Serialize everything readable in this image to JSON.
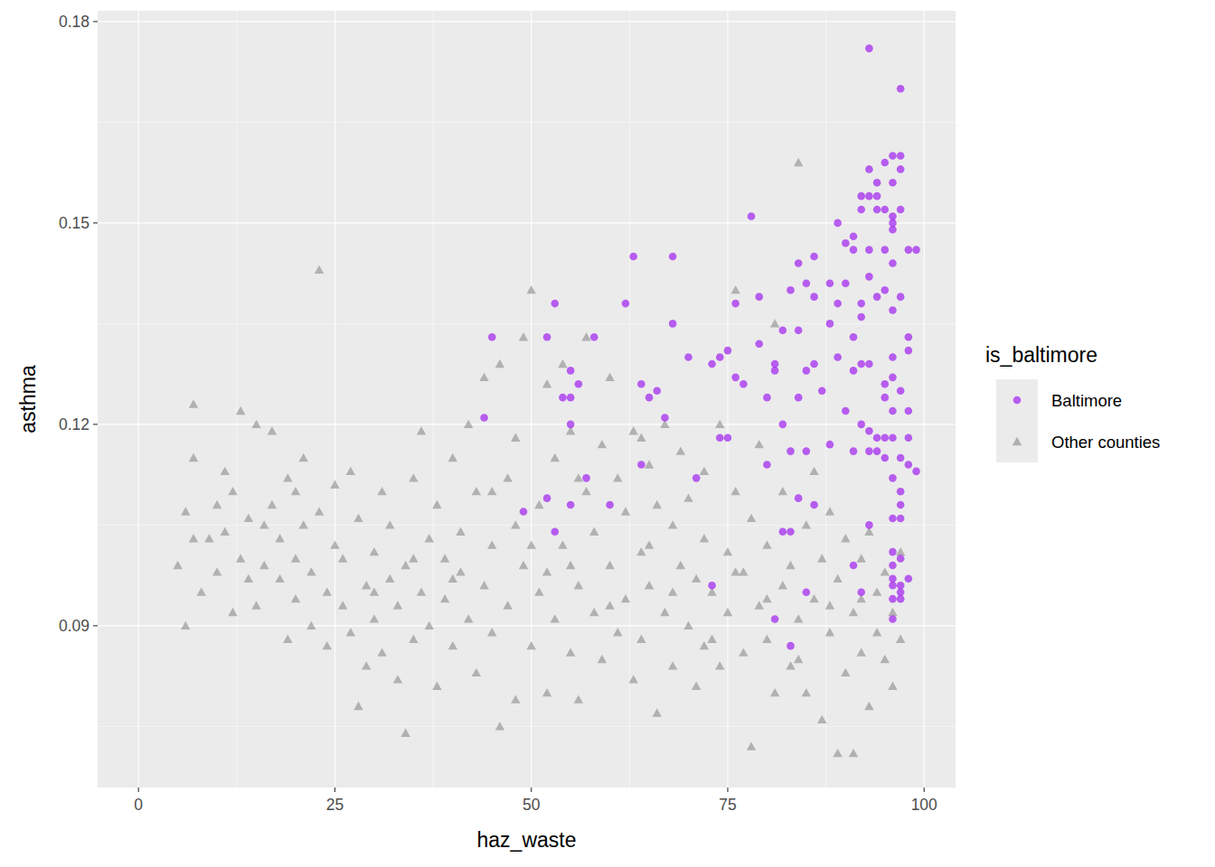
{
  "chart_data": {
    "type": "scatter",
    "x_label": "haz_waste",
    "y_label": "asthma",
    "legend_title": "is_baltimore",
    "xlim": [
      -5.2,
      104.0
    ],
    "ylim": [
      0.0659,
      0.1816
    ],
    "xticks": [
      0,
      25,
      50,
      75,
      100
    ],
    "yticks": [
      0.09,
      0.12,
      0.15,
      0.18
    ],
    "grid": true,
    "legend": "right",
    "series": [
      {
        "name": "Baltimore",
        "color": "#a020f0",
        "marker": "circle",
        "x": [
          93,
          97,
          96,
          97,
          97,
          93,
          95,
          96,
          94,
          92,
          93,
          94,
          92,
          94,
          95,
          96,
          96,
          97,
          96,
          89,
          78,
          90,
          91,
          93,
          91,
          95,
          98,
          99,
          86,
          84,
          96,
          63,
          68,
          93,
          85,
          88,
          90,
          89,
          92,
          94,
          95,
          97,
          79,
          76,
          53,
          62,
          83,
          86,
          96,
          92,
          88,
          91,
          68,
          45,
          52,
          58,
          82,
          84,
          98,
          75,
          79,
          73,
          74,
          70,
          81,
          85,
          89,
          92,
          93,
          91,
          96,
          98,
          55,
          56,
          64,
          76,
          77,
          81,
          86,
          95,
          96,
          97,
          54,
          55,
          65,
          66,
          80,
          84,
          87,
          95,
          96,
          90,
          98,
          44,
          67,
          55,
          82,
          92,
          93,
          74,
          75,
          94,
          95,
          96,
          98,
          83,
          85,
          88,
          91,
          93,
          94,
          64,
          80,
          95,
          97,
          98,
          99,
          57,
          71,
          96,
          52,
          84,
          97,
          97,
          55,
          60,
          86,
          49,
          96,
          97,
          53,
          82,
          83,
          96,
          97,
          91,
          96,
          98,
          73,
          96,
          97,
          85,
          92,
          96,
          97,
          81,
          96,
          83,
          97,
          96,
          93
        ],
        "values": [
          0.176,
          0.17,
          0.16,
          0.16,
          0.158,
          0.158,
          0.159,
          0.156,
          0.156,
          0.154,
          0.154,
          0.154,
          0.152,
          0.152,
          0.152,
          0.151,
          0.15,
          0.152,
          0.149,
          0.15,
          0.151,
          0.147,
          0.148,
          0.146,
          0.146,
          0.146,
          0.146,
          0.146,
          0.145,
          0.144,
          0.144,
          0.145,
          0.145,
          0.142,
          0.141,
          0.141,
          0.141,
          0.138,
          0.138,
          0.139,
          0.14,
          0.139,
          0.139,
          0.138,
          0.138,
          0.138,
          0.14,
          0.139,
          0.137,
          0.136,
          0.135,
          0.133,
          0.135,
          0.133,
          0.133,
          0.133,
          0.134,
          0.134,
          0.133,
          0.131,
          0.132,
          0.129,
          0.13,
          0.13,
          0.129,
          0.128,
          0.13,
          0.129,
          0.129,
          0.128,
          0.13,
          0.131,
          0.128,
          0.126,
          0.126,
          0.127,
          0.126,
          0.128,
          0.129,
          0.126,
          0.127,
          0.125,
          0.124,
          0.124,
          0.124,
          0.125,
          0.124,
          0.124,
          0.125,
          0.124,
          0.122,
          0.122,
          0.122,
          0.121,
          0.121,
          0.12,
          0.12,
          0.12,
          0.119,
          0.118,
          0.118,
          0.118,
          0.118,
          0.118,
          0.118,
          0.116,
          0.116,
          0.117,
          0.116,
          0.116,
          0.116,
          0.114,
          0.114,
          0.115,
          0.115,
          0.114,
          0.113,
          0.112,
          0.112,
          0.112,
          0.109,
          0.109,
          0.11,
          0.108,
          0.108,
          0.108,
          0.108,
          0.107,
          0.106,
          0.106,
          0.104,
          0.104,
          0.104,
          0.101,
          0.1,
          0.099,
          0.099,
          0.097,
          0.096,
          0.096,
          0.095,
          0.095,
          0.095,
          0.094,
          0.094,
          0.091,
          0.091,
          0.087,
          0.096,
          0.097,
          0.105
        ]
      },
      {
        "name": "Other counties",
        "color": "#999999",
        "marker": "triangle",
        "x": [
          5,
          6,
          6,
          7,
          7,
          7,
          8,
          9,
          10,
          10,
          11,
          11,
          12,
          12,
          13,
          13,
          14,
          14,
          15,
          15,
          16,
          16,
          17,
          17,
          18,
          18,
          19,
          19,
          20,
          20,
          21,
          21,
          22,
          22,
          23,
          23,
          24,
          24,
          25,
          25,
          26,
          26,
          27,
          27,
          28,
          28,
          29,
          29,
          30,
          30,
          31,
          31,
          32,
          32,
          33,
          33,
          34,
          34,
          35,
          35,
          36,
          36,
          37,
          37,
          38,
          38,
          39,
          39,
          40,
          40,
          41,
          41,
          42,
          42,
          43,
          43,
          44,
          44,
          45,
          45,
          46,
          46,
          47,
          47,
          48,
          48,
          49,
          49,
          50,
          50,
          51,
          51,
          52,
          52,
          53,
          53,
          54,
          54,
          55,
          55,
          56,
          56,
          57,
          57,
          58,
          58,
          59,
          59,
          60,
          60,
          61,
          61,
          62,
          62,
          63,
          63,
          64,
          64,
          65,
          65,
          66,
          66,
          67,
          67,
          68,
          68,
          69,
          69,
          70,
          70,
          71,
          71,
          72,
          72,
          73,
          73,
          74,
          74,
          75,
          75,
          76,
          76,
          77,
          77,
          78,
          78,
          79,
          79,
          80,
          80,
          81,
          81,
          82,
          82,
          83,
          83,
          84,
          84,
          85,
          85,
          86,
          86,
          87,
          87,
          88,
          88,
          89,
          89,
          90,
          90,
          91,
          91,
          92,
          92,
          93,
          93,
          94,
          94,
          95,
          95,
          96,
          96,
          97,
          97,
          45,
          48,
          52,
          56,
          60,
          64,
          68,
          72,
          76,
          80,
          84,
          88,
          92,
          20,
          30,
          35,
          40,
          50,
          55,
          65
        ],
        "values": [
          0.099,
          0.107,
          0.09,
          0.123,
          0.115,
          0.103,
          0.095,
          0.103,
          0.098,
          0.108,
          0.104,
          0.113,
          0.11,
          0.092,
          0.122,
          0.1,
          0.097,
          0.106,
          0.12,
          0.093,
          0.105,
          0.099,
          0.119,
          0.108,
          0.097,
          0.103,
          0.088,
          0.112,
          0.1,
          0.094,
          0.115,
          0.105,
          0.098,
          0.09,
          0.143,
          0.107,
          0.095,
          0.087,
          0.102,
          0.111,
          0.093,
          0.1,
          0.113,
          0.089,
          0.078,
          0.106,
          0.096,
          0.084,
          0.101,
          0.091,
          0.11,
          0.086,
          0.097,
          0.105,
          0.093,
          0.082,
          0.074,
          0.099,
          0.112,
          0.088,
          0.119,
          0.095,
          0.09,
          0.103,
          0.081,
          0.108,
          0.1,
          0.094,
          0.115,
          0.087,
          0.104,
          0.098,
          0.12,
          0.091,
          0.11,
          0.083,
          0.096,
          0.127,
          0.102,
          0.089,
          0.075,
          0.129,
          0.112,
          0.093,
          0.079,
          0.118,
          0.133,
          0.099,
          0.14,
          0.087,
          0.108,
          0.095,
          0.126,
          0.08,
          0.115,
          0.091,
          0.129,
          0.102,
          0.086,
          0.119,
          0.096,
          0.079,
          0.133,
          0.11,
          0.092,
          0.104,
          0.117,
          0.085,
          0.099,
          0.127,
          0.089,
          0.112,
          0.107,
          0.094,
          0.119,
          0.082,
          0.101,
          0.088,
          0.114,
          0.096,
          0.077,
          0.108,
          0.12,
          0.092,
          0.084,
          0.105,
          0.099,
          0.116,
          0.09,
          0.109,
          0.081,
          0.097,
          0.113,
          0.103,
          0.088,
          0.095,
          0.12,
          0.084,
          0.101,
          0.092,
          0.14,
          0.11,
          0.086,
          0.098,
          0.072,
          0.106,
          0.093,
          0.117,
          0.088,
          0.102,
          0.135,
          0.08,
          0.096,
          0.11,
          0.084,
          0.099,
          0.159,
          0.091,
          0.105,
          0.08,
          0.094,
          0.113,
          0.076,
          0.1,
          0.089,
          0.107,
          0.071,
          0.097,
          0.083,
          0.103,
          0.071,
          0.092,
          0.1,
          0.086,
          0.078,
          0.104,
          0.095,
          0.089,
          0.085,
          0.098,
          0.081,
          0.092,
          0.101,
          0.088,
          0.11,
          0.105,
          0.098,
          0.112,
          0.093,
          0.118,
          0.095,
          0.087,
          0.098,
          0.094,
          0.085,
          0.093,
          0.094,
          0.11,
          0.095,
          0.1,
          0.097,
          0.102,
          0.099,
          0.102
        ]
      }
    ]
  }
}
